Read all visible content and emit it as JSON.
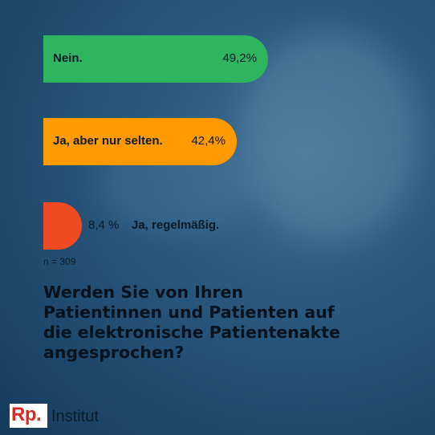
{
  "chart_data": {
    "type": "bar",
    "orientation": "horizontal",
    "categories": [
      "Nein.",
      "Ja, aber nur selten.",
      "Ja, regelmäßig."
    ],
    "values": [
      49.2,
      42.4,
      8.4
    ],
    "value_labels": [
      "49,2%",
      "42,4%",
      "8,4 %"
    ],
    "colors": [
      "#2fb45f",
      "#ff9a00",
      "#f04a23"
    ],
    "note": "n = 309",
    "title": "Werden Sie von Ihren\nPatientinnen und Patienten auf\ndie elektronische Patientenakte\nangesprochen?"
  },
  "brand": {
    "logo": "Rp.",
    "name": "Institut"
  }
}
